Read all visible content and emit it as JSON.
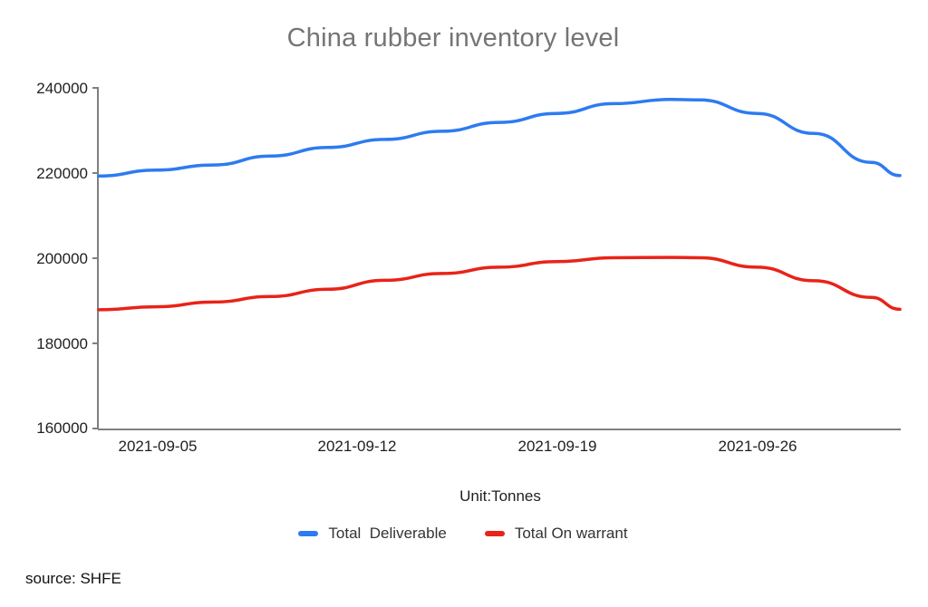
{
  "unit_label": "Unit:Tonnes",
  "source_note": "source: SHFE",
  "colors": {
    "deliverable_blue": "#2d7bf0",
    "warrant_red": "#e82318",
    "axis_gray": "#808080",
    "title_gray": "#757575"
  },
  "chart_data": {
    "type": "line",
    "title": "China rubber inventory level",
    "xlabel": "Unit:Tonnes",
    "ylabel": "",
    "x": [
      "2021-09-03",
      "2021-09-05",
      "2021-09-07",
      "2021-09-09",
      "2021-09-11",
      "2021-09-13",
      "2021-09-15",
      "2021-09-17",
      "2021-09-19",
      "2021-09-21",
      "2021-09-23",
      "2021-09-24",
      "2021-09-26",
      "2021-09-28",
      "2021-09-30",
      "2021-10-01"
    ],
    "series": [
      {
        "name": "Total  Deliverable",
        "color": "#2d7bf0",
        "values": [
          219300,
          220700,
          221900,
          224000,
          226000,
          227900,
          229800,
          231900,
          234000,
          236300,
          237300,
          237200,
          234000,
          229300,
          222500,
          219400
        ]
      },
      {
        "name": "Total On warrant",
        "color": "#e82318",
        "values": [
          187900,
          188600,
          189700,
          191000,
          192700,
          194800,
          196400,
          197900,
          199200,
          200100,
          200200,
          200100,
          197900,
          194700,
          190800,
          188000
        ]
      }
    ],
    "xlim": [
      "2021-09-03",
      "2021-10-01"
    ],
    "ylim": [
      160000,
      240000
    ],
    "y_tick_labels": [
      "240000",
      "220000",
      "200000",
      "180000",
      "160000"
    ],
    "x_tick_labels": [
      "2021-09-05",
      "2021-09-12",
      "2021-09-19",
      "2021-09-26"
    ],
    "grid": false,
    "legend_position": "bottom",
    "curve": "smooth"
  }
}
